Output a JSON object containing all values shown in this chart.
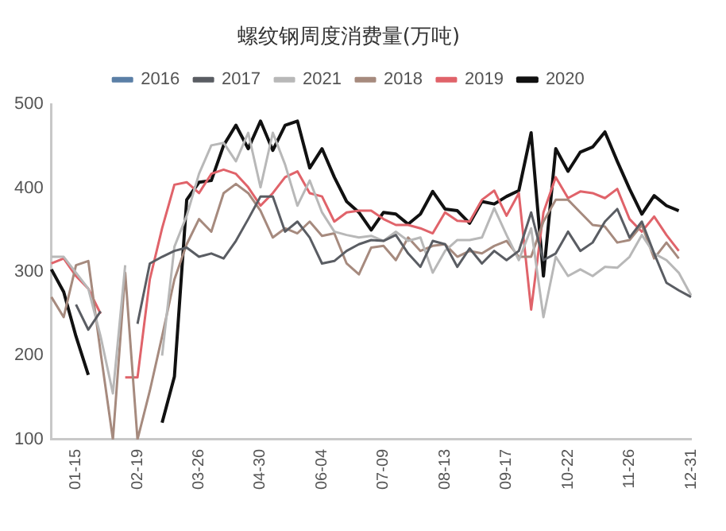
{
  "chart_data": {
    "type": "line",
    "title": "螺纹钢周度消费量(万吨)",
    "categories": [
      null,
      null,
      "01-15",
      null,
      null,
      null,
      null,
      "02-19",
      null,
      null,
      null,
      null,
      "03-26",
      null,
      null,
      null,
      null,
      "04-30",
      null,
      null,
      null,
      null,
      "06-04",
      null,
      null,
      null,
      null,
      "07-09",
      null,
      null,
      null,
      null,
      "08-13",
      null,
      null,
      null,
      null,
      "09-17",
      null,
      null,
      null,
      null,
      "10-22",
      null,
      null,
      null,
      null,
      "11-26",
      null,
      null,
      null,
      null,
      "12-31"
    ],
    "series": [
      {
        "name": "2016",
        "color": "#5b7fa6",
        "values": [
          null,
          null,
          null,
          null,
          null,
          null,
          null,
          null,
          null,
          null,
          null,
          null,
          null,
          null,
          null,
          null,
          null,
          null,
          null,
          null,
          null,
          null,
          null,
          null,
          null,
          null,
          null,
          null,
          null,
          null,
          null,
          null,
          null,
          null,
          null,
          null,
          null,
          null,
          null,
          null,
          null,
          null,
          null,
          null,
          null,
          null,
          null,
          null,
          null,
          null,
          null,
          null,
          null
        ]
      },
      {
        "name": "2017",
        "color": "#5a5d63",
        "values": [
          null,
          null,
          261,
          231,
          253,
          null,
          null,
          238,
          310,
          318,
          325,
          329,
          318,
          322,
          316,
          337,
          363,
          390,
          390,
          348,
          360,
          341,
          310,
          313,
          325,
          333,
          338,
          337,
          344,
          322,
          306,
          337,
          333,
          306,
          328,
          310,
          325,
          314,
          325,
          371,
          314,
          322,
          348,
          325,
          335,
          360,
          375,
          341,
          360,
          322,
          287,
          278,
          270
        ]
      },
      {
        "name": "2021",
        "color": "#b8b8b8",
        "values": [
          318,
          318,
          299,
          280,
          223,
          155,
          308,
          null,
          null,
          200,
          330,
          367,
          417,
          451,
          454,
          432,
          466,
          401,
          466,
          428,
          379,
          409,
          371,
          348,
          344,
          341,
          343,
          337,
          348,
          337,
          341,
          299,
          325,
          338,
          338,
          341,
          376,
          344,
          314,
          352,
          246,
          318,
          295,
          303,
          295,
          306,
          305,
          318,
          344,
          322,
          314,
          299,
          272
        ]
      },
      {
        "name": "2018",
        "color": "#a68a7e",
        "values": [
          270,
          246,
          308,
          313,
          204,
          100,
          299,
          100,
          158,
          223,
          291,
          333,
          363,
          348,
          394,
          405,
          394,
          373,
          341,
          352,
          346,
          360,
          343,
          346,
          310,
          297,
          329,
          331,
          314,
          341,
          325,
          331,
          333,
          318,
          325,
          322,
          331,
          337,
          318,
          318,
          360,
          386,
          386,
          371,
          356,
          354,
          335,
          338,
          356,
          316,
          335,
          316,
          null
        ]
      },
      {
        "name": "2019",
        "color": "#e0636a",
        "values": [
          310,
          316,
          295,
          280,
          250,
          null,
          174,
          174,
          291,
          352,
          404,
          407,
          394,
          417,
          422,
          417,
          401,
          379,
          394,
          413,
          420,
          394,
          390,
          360,
          371,
          373,
          373,
          363,
          356,
          356,
          352,
          346,
          371,
          361,
          360,
          386,
          397,
          367,
          394,
          255,
          371,
          413,
          388,
          396,
          394,
          388,
          399,
          363,
          348,
          366,
          344,
          325,
          null
        ]
      },
      {
        "name": "2020",
        "color": "#111111",
        "values": [
          303,
          276,
          223,
          177,
          null,
          null,
          null,
          null,
          null,
          120,
          175,
          386,
          407,
          409,
          451,
          475,
          447,
          480,
          445,
          475,
          480,
          424,
          447,
          413,
          384,
          371,
          350,
          371,
          369,
          357,
          369,
          396,
          375,
          373,
          358,
          384,
          381,
          390,
          397,
          466,
          295,
          447,
          420,
          443,
          449,
          467,
          432,
          399,
          369,
          391,
          379,
          373,
          null
        ]
      }
    ],
    "ylim": [
      100,
      500
    ],
    "yticks": [
      100,
      200,
      300,
      400,
      500
    ],
    "grid": false,
    "legend": "top",
    "marker": "none",
    "line_style": "solid"
  }
}
